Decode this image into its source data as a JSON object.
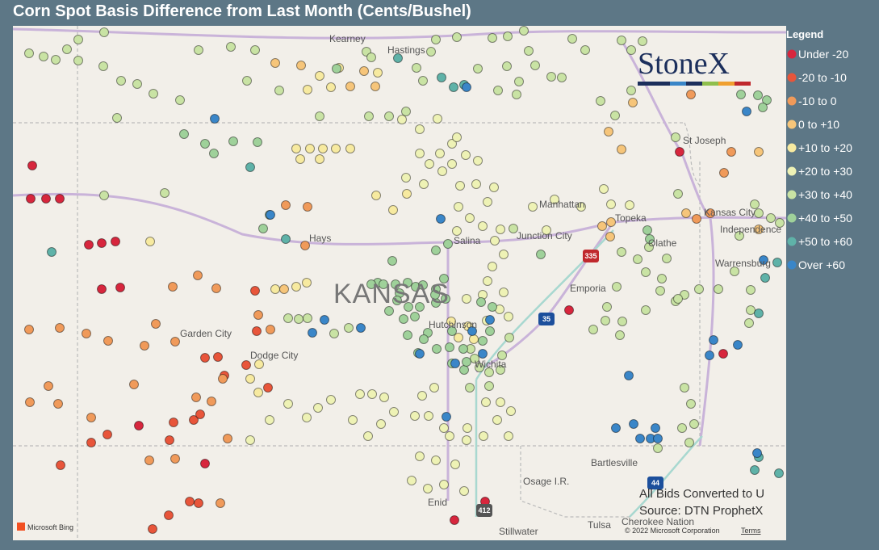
{
  "header": {
    "title": "Corn Spot Basis Difference from Last Month (Cents/Bushel)"
  },
  "legend": {
    "title": "Legend",
    "items": [
      {
        "label": "Under -20",
        "color": "#d7263d"
      },
      {
        "label": "-20 to -10",
        "color": "#e8553a"
      },
      {
        "label": "-10 to 0",
        "color": "#f09a5a"
      },
      {
        "label": "0 to +10",
        "color": "#f6c57a"
      },
      {
        "label": "+10 to +20",
        "color": "#f7eaa0"
      },
      {
        "label": "+20 to +30",
        "color": "#eef2b5"
      },
      {
        "label": "+30 to +40",
        "color": "#c9e3a4"
      },
      {
        "label": "+40 to +50",
        "color": "#9fd19a"
      },
      {
        "label": "+50 to +60",
        "color": "#5fb2a8"
      },
      {
        "label": "Over +60",
        "color": "#3a86c8"
      }
    ]
  },
  "places": [
    "Kearney",
    "Hastings",
    "St Joseph",
    "Hays",
    "Manhattan",
    "Junction City",
    "Topeka",
    "Kansas City",
    "Independence",
    "Olathe",
    "Salina",
    "KANSAS",
    "Emporia",
    "Warrensburg",
    "Garden City",
    "Dodge City",
    "Hutchinson",
    "Wichita",
    "Bartlesville",
    "Osage I.R.",
    "Enid",
    "Tulsa",
    "Stillwater",
    "Cherokee Nation"
  ],
  "shields": [
    "335",
    "35",
    "412",
    "44"
  ],
  "logo": "StoneX",
  "notes": {
    "converted": "All Bids Converted to U",
    "source": "Source: DTN ProphetX"
  },
  "footer": {
    "copyright": "© 2022 Microsoft Corporation",
    "terms": "Terms",
    "bing": "Microsoft Bing"
  }
}
